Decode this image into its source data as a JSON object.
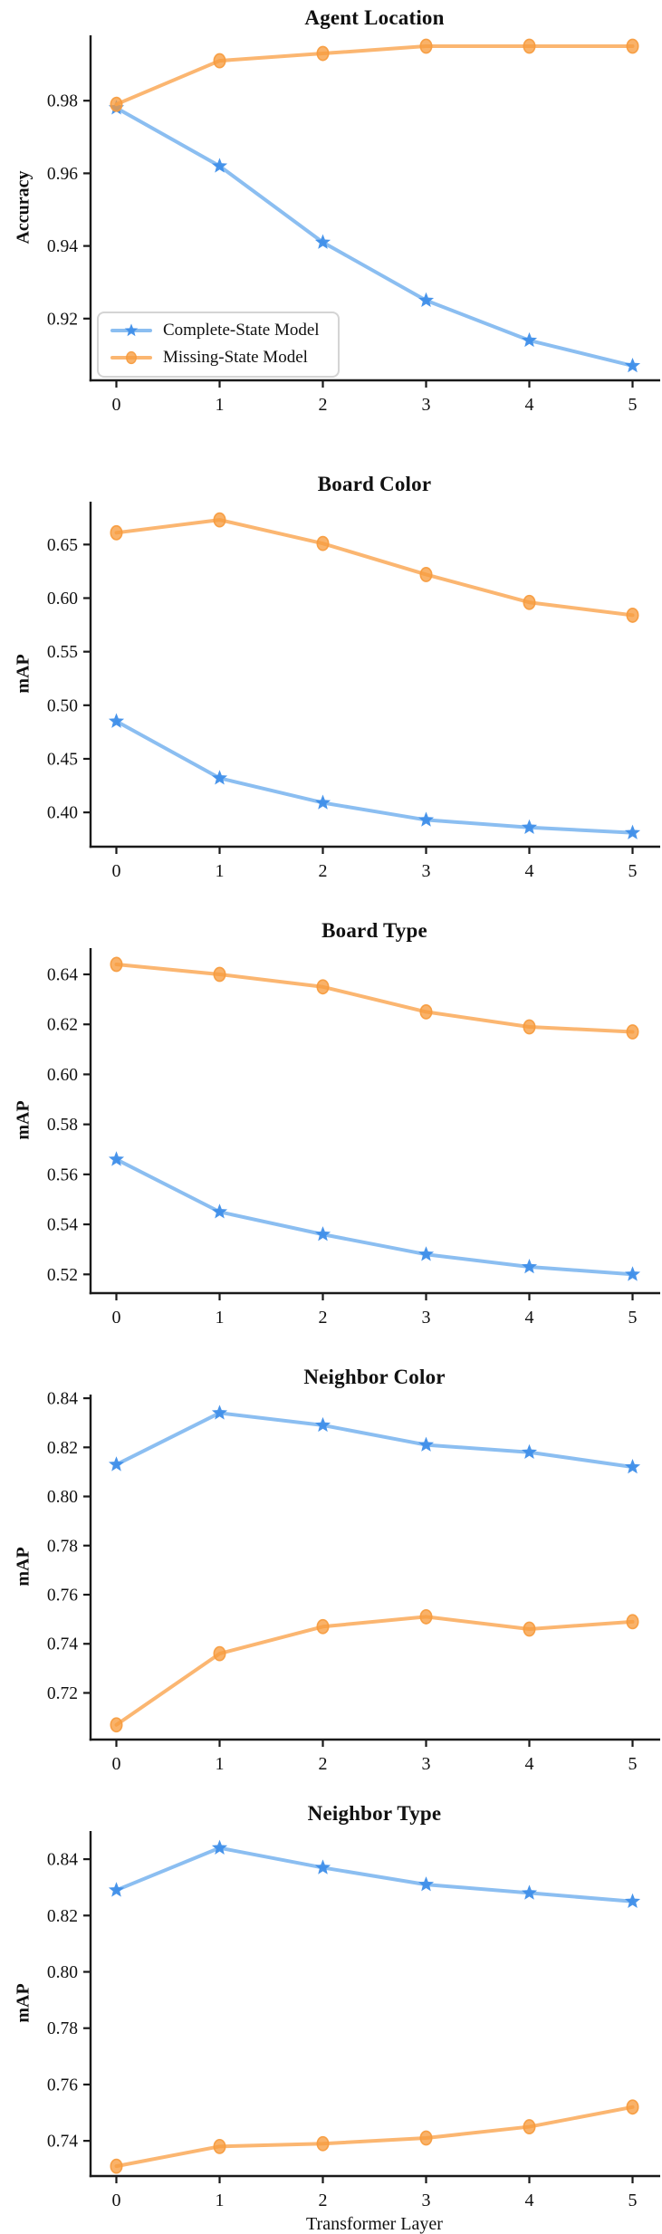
{
  "page": {
    "background": "#ffffff"
  },
  "colors": {
    "complete_line": "#85BBF0",
    "complete_marker": "#3E8EE9",
    "missing_line": "#FBB269",
    "missing_marker": "#F79C3F",
    "axis": "#1a1a1a",
    "legend_border": "#d4d4d4"
  },
  "legend": {
    "items": [
      {
        "label": "Complete-State Model",
        "series": "complete",
        "marker": "star"
      },
      {
        "label": "Missing-State Model",
        "series": "missing",
        "marker": "circle"
      }
    ]
  },
  "chart_data": [
    {
      "type": "line",
      "title": "Agent Location",
      "ylabel": "Accuracy",
      "xlabel": "",
      "x": [
        0,
        1,
        2,
        3,
        4,
        5
      ],
      "series": [
        {
          "name": "Complete-State Model",
          "marker": "star",
          "color": "complete",
          "values": [
            0.978,
            0.962,
            0.941,
            0.925,
            0.914,
            0.907
          ]
        },
        {
          "name": "Missing-State Model",
          "marker": "circle",
          "color": "missing",
          "values": [
            0.979,
            0.991,
            0.993,
            0.995,
            0.995,
            0.995
          ]
        }
      ],
      "ylim": [
        0.903,
        0.998
      ],
      "yticks": {
        "values": [
          0.92,
          0.94,
          0.96,
          0.98
        ],
        "labels": [
          "0.92",
          "0.94",
          "0.96",
          "0.98"
        ]
      },
      "xticks": {
        "values": [
          0,
          1,
          2,
          3,
          4,
          5
        ],
        "labels": [
          "0",
          "1",
          "2",
          "3",
          "4",
          "5"
        ]
      },
      "legend_position": "lower-left",
      "grid": false
    },
    {
      "type": "line",
      "title": "Board Color",
      "ylabel": "mAP",
      "xlabel": "",
      "x": [
        0,
        1,
        2,
        3,
        4,
        5
      ],
      "series": [
        {
          "name": "Complete-State Model",
          "marker": "star",
          "color": "complete",
          "values": [
            0.485,
            0.432,
            0.409,
            0.393,
            0.386,
            0.381
          ]
        },
        {
          "name": "Missing-State Model",
          "marker": "circle",
          "color": "missing",
          "values": [
            0.661,
            0.673,
            0.651,
            0.622,
            0.596,
            0.584
          ]
        }
      ],
      "ylim": [
        0.368,
        0.69
      ],
      "yticks": {
        "values": [
          0.4,
          0.45,
          0.5,
          0.55,
          0.6,
          0.65
        ],
        "labels": [
          "0.40",
          "0.45",
          "0.50",
          "0.55",
          "0.60",
          "0.65"
        ]
      },
      "xticks": {
        "values": [
          0,
          1,
          2,
          3,
          4,
          5
        ],
        "labels": [
          "0",
          "1",
          "2",
          "3",
          "4",
          "5"
        ]
      },
      "grid": false
    },
    {
      "type": "line",
      "title": "Board Type",
      "ylabel": "mAP",
      "xlabel": "",
      "x": [
        0,
        1,
        2,
        3,
        4,
        5
      ],
      "series": [
        {
          "name": "Complete-State Model",
          "marker": "star",
          "color": "complete",
          "values": [
            0.566,
            0.545,
            0.536,
            0.528,
            0.523,
            0.52
          ]
        },
        {
          "name": "Missing-State Model",
          "marker": "circle",
          "color": "missing",
          "values": [
            0.644,
            0.64,
            0.635,
            0.625,
            0.619,
            0.617
          ]
        }
      ],
      "ylim": [
        0.5125,
        0.6505
      ],
      "yticks": {
        "values": [
          0.52,
          0.54,
          0.56,
          0.58,
          0.6,
          0.62,
          0.64
        ],
        "labels": [
          "0.52",
          "0.54",
          "0.56",
          "0.58",
          "0.60",
          "0.62",
          "0.64"
        ]
      },
      "xticks": {
        "values": [
          0,
          1,
          2,
          3,
          4,
          5
        ],
        "labels": [
          "0",
          "1",
          "2",
          "3",
          "4",
          "5"
        ]
      },
      "grid": false
    },
    {
      "type": "line",
      "title": "Neighbor Color",
      "ylabel": "mAP",
      "xlabel": "",
      "x": [
        0,
        1,
        2,
        3,
        4,
        5
      ],
      "series": [
        {
          "name": "Complete-State Model",
          "marker": "star",
          "color": "complete",
          "values": [
            0.813,
            0.834,
            0.829,
            0.821,
            0.818,
            0.812
          ]
        },
        {
          "name": "Missing-State Model",
          "marker": "circle",
          "color": "missing",
          "values": [
            0.707,
            0.736,
            0.747,
            0.751,
            0.746,
            0.749
          ]
        }
      ],
      "ylim": [
        0.701,
        0.8415
      ],
      "yticks": {
        "values": [
          0.72,
          0.74,
          0.76,
          0.78,
          0.8,
          0.82,
          0.84
        ],
        "labels": [
          "0.72",
          "0.74",
          "0.76",
          "0.78",
          "0.80",
          "0.82",
          "0.84"
        ]
      },
      "xticks": {
        "values": [
          0,
          1,
          2,
          3,
          4,
          5
        ],
        "labels": [
          "0",
          "1",
          "2",
          "3",
          "4",
          "5"
        ]
      },
      "grid": false
    },
    {
      "type": "line",
      "title": "Neighbor Type",
      "ylabel": "mAP",
      "xlabel": "Transformer Layer",
      "x": [
        0,
        1,
        2,
        3,
        4,
        5
      ],
      "series": [
        {
          "name": "Complete-State Model",
          "marker": "star",
          "color": "complete",
          "values": [
            0.829,
            0.844,
            0.837,
            0.831,
            0.828,
            0.825
          ]
        },
        {
          "name": "Missing-State Model",
          "marker": "circle",
          "color": "missing",
          "values": [
            0.731,
            0.738,
            0.739,
            0.741,
            0.745,
            0.752
          ]
        }
      ],
      "ylim": [
        0.7275,
        0.85
      ],
      "yticks": {
        "values": [
          0.74,
          0.76,
          0.78,
          0.8,
          0.82,
          0.84
        ],
        "labels": [
          "0.74",
          "0.76",
          "0.78",
          "0.80",
          "0.82",
          "0.84"
        ]
      },
      "xticks": {
        "values": [
          0,
          1,
          2,
          3,
          4,
          5
        ],
        "labels": [
          "0",
          "1",
          "2",
          "3",
          "4",
          "5"
        ]
      },
      "grid": false
    }
  ]
}
